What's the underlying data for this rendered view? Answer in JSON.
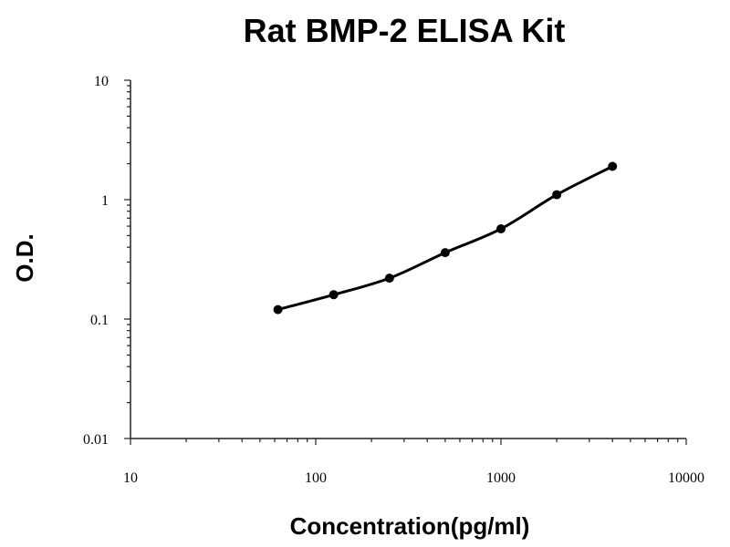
{
  "chart_data": {
    "type": "scatter",
    "title": "Rat BMP-2 ELISA Kit",
    "xlabel": "Concentration(pg/ml)",
    "ylabel": "O.D.",
    "xscale": "log",
    "yscale": "log",
    "xlim": [
      10,
      10000
    ],
    "ylim": [
      0.01,
      10
    ],
    "x_ticks": [
      10,
      100,
      1000,
      10000
    ],
    "x_tick_labels": [
      "10",
      "100",
      "1000",
      "10000"
    ],
    "y_ticks": [
      0.01,
      0.1,
      1,
      10
    ],
    "y_tick_labels": [
      "0.01",
      "0.1",
      "1",
      "10"
    ],
    "grid": false,
    "series": [
      {
        "x": [
          62.5,
          125,
          250,
          500,
          1000,
          2000,
          4000
        ],
        "y": [
          0.12,
          0.16,
          0.22,
          0.36,
          0.57,
          1.1,
          1.9
        ],
        "fit_curve": true
      }
    ]
  }
}
